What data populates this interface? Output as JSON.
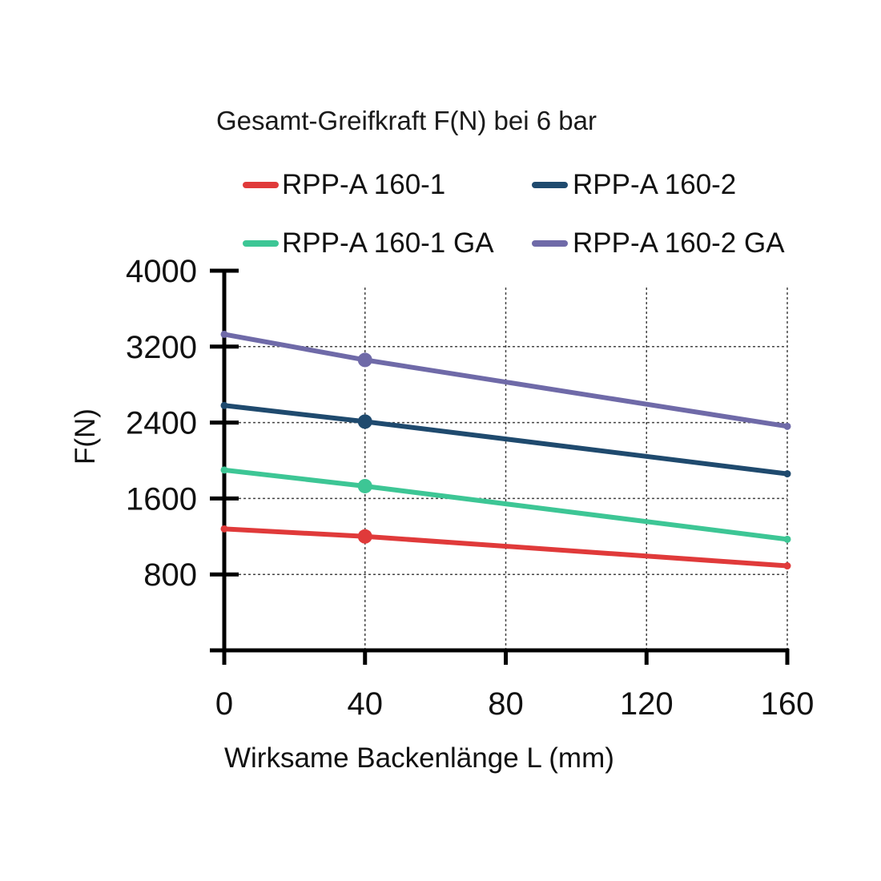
{
  "chart_data": {
    "type": "line",
    "title": "Gesamt-Greifkraft F(N) bei 6 bar",
    "xlabel": "Wirksame Backenlänge L (mm)",
    "ylabel": "F(N)",
    "xlim": [
      0,
      160
    ],
    "ylim": [
      0,
      4000
    ],
    "x_ticks": [
      0,
      40,
      80,
      120,
      160
    ],
    "y_ticks": [
      800,
      1600,
      2400,
      3200,
      4000
    ],
    "grid": true,
    "legend_position": "top",
    "series": [
      {
        "name": "RPP-A 160-1",
        "color": "#e03a3a",
        "x": [
          0,
          40,
          160
        ],
        "y": [
          1280,
          1200,
          890
        ],
        "markers_at": [
          40
        ]
      },
      {
        "name": "RPP-A 160-2",
        "color": "#1f4a6e",
        "x": [
          0,
          40,
          160
        ],
        "y": [
          2580,
          2410,
          1860
        ],
        "markers_at": [
          40
        ]
      },
      {
        "name": "RPP-A 160-1 GA",
        "color": "#3dc695",
        "x": [
          0,
          40,
          160
        ],
        "y": [
          1900,
          1730,
          1170
        ],
        "markers_at": [
          40
        ]
      },
      {
        "name": "RPP-A 160-2 GA",
        "color": "#6f6aa8",
        "x": [
          0,
          40,
          160
        ],
        "y": [
          3330,
          3060,
          2360
        ],
        "markers_at": [
          40
        ]
      }
    ]
  }
}
